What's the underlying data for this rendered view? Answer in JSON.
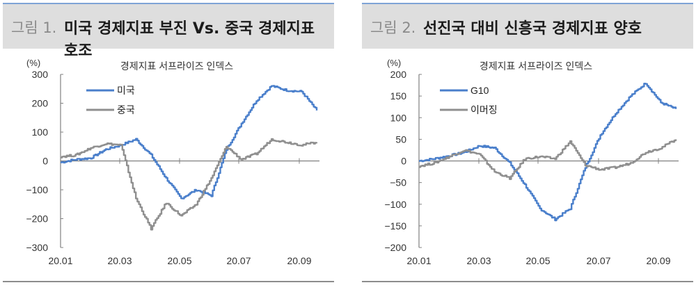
{
  "figures": [
    {
      "number": "그림 1.",
      "title": "미국 경제지표 부진 Vs. 중국 경제지표 호조",
      "unit": "(%)",
      "chart_title": "경제지표 서프라이즈 인덱스"
    },
    {
      "number": "그림 2.",
      "title": "선진국 대비 신흥국 경제지표 양호",
      "unit": "(%)",
      "chart_title": "경제지표 서프라이즈 인덱스"
    }
  ],
  "colors": {
    "blue_series": "#4a7fcb",
    "gray_series": "#8f8f8f",
    "header_bg": "#dedede",
    "header_top_rule": "#7ea3d6",
    "axis": "#808080"
  },
  "chart_data": [
    {
      "type": "line",
      "title": "경제지표 서프라이즈 인덱스",
      "figure_title": "그림 1. 미국 경제지표 부진 Vs. 중국 경제지표 호조",
      "ylabel": "(%)",
      "xlabel": "",
      "ylim": [
        -300,
        300
      ],
      "yticks": [
        300,
        200,
        100,
        0,
        -100,
        -200,
        -300
      ],
      "xticks": [
        "20.01",
        "20.03",
        "20.05",
        "20.07",
        "20.09"
      ],
      "grid": false,
      "legend_position": "upper-left",
      "x": [
        "20.01",
        "20.01m",
        "20.02",
        "20.02m",
        "20.03",
        "20.03m",
        "20.04",
        "20.04m",
        "20.05",
        "20.05m",
        "20.06",
        "20.06m",
        "20.07",
        "20.07m",
        "20.08",
        "20.08m",
        "20.09",
        "20.09m"
      ],
      "series": [
        {
          "name": "미국",
          "color": "#4a7fcb",
          "values": [
            -5,
            5,
            10,
            40,
            55,
            75,
            20,
            -60,
            -130,
            -100,
            -120,
            40,
            130,
            210,
            260,
            245,
            240,
            175
          ]
        },
        {
          "name": "중국",
          "color": "#8f8f8f",
          "values": [
            15,
            20,
            45,
            60,
            55,
            -130,
            -235,
            -145,
            -190,
            -150,
            -60,
            50,
            5,
            25,
            75,
            65,
            55,
            65
          ]
        }
      ]
    },
    {
      "type": "line",
      "title": "경제지표 서프라이즈 인덱스",
      "figure_title": "그림 2. 선진국 대비 신흥국 경제지표 양호",
      "ylabel": "(%)",
      "xlabel": "",
      "ylim": [
        -200,
        200
      ],
      "yticks": [
        200,
        150,
        100,
        50,
        0,
        -50,
        -100,
        -150,
        -200
      ],
      "xticks": [
        "20.01",
        "20.03",
        "20.05",
        "20.07",
        "20.09"
      ],
      "grid": false,
      "legend_position": "upper-left",
      "x": [
        "20.01",
        "20.01m",
        "20.02",
        "20.02m",
        "20.03",
        "20.03m",
        "20.04",
        "20.04m",
        "20.05",
        "20.05m",
        "20.06",
        "20.06m",
        "20.07",
        "20.07m",
        "20.08",
        "20.08m",
        "20.09",
        "20.09m"
      ],
      "series": [
        {
          "name": "G10",
          "color": "#4a7fcb",
          "values": [
            0,
            5,
            12,
            20,
            35,
            30,
            -5,
            -55,
            -110,
            -135,
            -110,
            -15,
            60,
            110,
            150,
            180,
            135,
            120
          ]
        },
        {
          "name": "이머징",
          "color": "#8f8f8f",
          "values": [
            -12,
            -5,
            10,
            25,
            15,
            -25,
            -40,
            5,
            10,
            5,
            45,
            -10,
            -20,
            -15,
            -5,
            20,
            30,
            50
          ]
        }
      ]
    }
  ]
}
